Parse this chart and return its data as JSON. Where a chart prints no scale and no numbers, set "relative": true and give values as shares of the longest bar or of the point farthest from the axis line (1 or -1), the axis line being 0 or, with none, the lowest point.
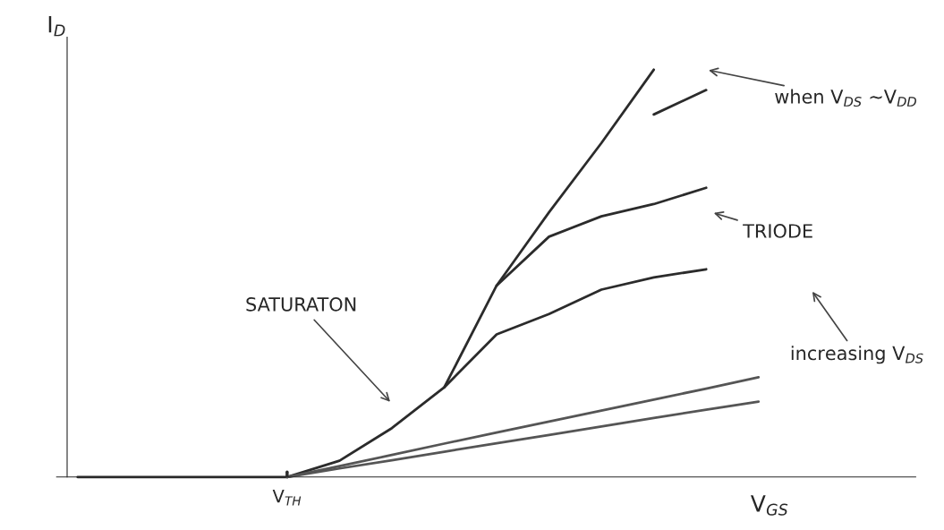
{
  "chart_data": {
    "type": "line",
    "relative": true,
    "xlabel": "V$_{GS}$",
    "ylabel": "I$_{D}$",
    "categories": [
      null,
      null,
      null,
      null,
      null,
      null,
      null,
      null,
      null,
      null,
      null,
      null,
      null,
      null,
      null
    ],
    "series": [
      {
        "color": "#2b2b2b",
        "values": [
          0,
          0,
          0,
          0,
          0,
          0.04,
          0.12,
          0.22,
          0.47,
          0.65,
          0.82,
          1,
          null,
          null,
          null
        ]
      },
      {
        "color": "#2b2b2b",
        "values": [
          null,
          null,
          null,
          null,
          null,
          null,
          null,
          0.22,
          0.35,
          0.4,
          0.46,
          0.49,
          0.51,
          null,
          null
        ]
      },
      {
        "color": "#2b2b2b",
        "values": [
          null,
          null,
          null,
          null,
          null,
          null,
          null,
          null,
          0.47,
          0.59,
          0.64,
          0.67,
          0.71,
          null,
          null
        ]
      },
      {
        "color": "#2b2b2b",
        "values": [
          null,
          null,
          null,
          null,
          null,
          null,
          null,
          null,
          null,
          null,
          null,
          0.89,
          0.95,
          null,
          null
        ]
      },
      {
        "color": "#555555",
        "values": [
          null,
          null,
          null,
          null,
          0,
          0.027,
          0.054,
          0.082,
          0.109,
          0.136,
          0.163,
          0.19,
          0.217,
          0.245,
          null
        ]
      },
      {
        "color": "#555555",
        "values": [
          null,
          null,
          null,
          null,
          0,
          0.021,
          0.041,
          0.062,
          0.083,
          0.103,
          0.124,
          0.145,
          0.165,
          0.185,
          null
        ]
      }
    ],
    "annotations": [
      "when V$_{DS}$ ~V$_{DD}$",
      "TRIODE",
      "SATURATON",
      "increasing V$_{DS}$",
      "V$_{TH}$"
    ],
    "legend": false,
    "marker": "none",
    "line_style": "solid"
  }
}
